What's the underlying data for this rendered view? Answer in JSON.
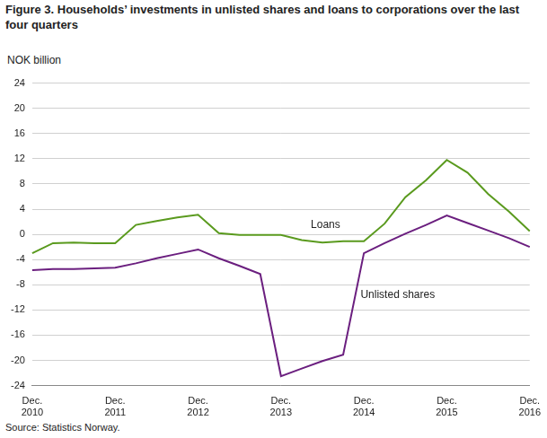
{
  "chart_data": {
    "type": "line",
    "title": "Figure 3. Households’ investments in unlisted shares and loans to corporations over the last four quarters",
    "ylabel": "NOK billion",
    "source": "Source: Statistics Norway.",
    "categories": [
      "Dec. 2010",
      null,
      null,
      null,
      "Dec. 2011",
      null,
      null,
      null,
      "Dec. 2012",
      null,
      null,
      null,
      "Dec. 2013",
      null,
      null,
      null,
      "Dec. 2014",
      null,
      null,
      null,
      "Dec. 2015",
      null,
      null,
      null,
      "Dec. 2016"
    ],
    "series": [
      {
        "name": "Loans",
        "color": "#5a9a1e",
        "values": [
          -3,
          -1.4,
          -1.3,
          -1.4,
          -1.4,
          1.5,
          2.1,
          2.7,
          3.1,
          0.2,
          -0.1,
          -0.1,
          -0.1,
          -0.9,
          -1.3,
          -1.1,
          -1.1,
          1.7,
          5.9,
          8.6,
          11.8,
          9.8,
          6.4,
          3.6,
          0.5
        ]
      },
      {
        "name": "Unlisted shares",
        "color": "#6b1f7f",
        "values": [
          -5.7,
          -5.5,
          -5.5,
          -5.4,
          -5.3,
          -4.6,
          -3.8,
          -3.1,
          -2.4,
          -3.8,
          -5,
          -6.3,
          -22.5,
          -21.3,
          -20.1,
          -19.1,
          -3,
          -1.4,
          0.1,
          1.5,
          3,
          1.8,
          0.6,
          -0.6,
          -2
        ]
      }
    ],
    "ylim": [
      -24,
      24
    ],
    "yticks": [
      -24,
      -20,
      -16,
      -12,
      -8,
      -4,
      0,
      4,
      8,
      12,
      16,
      20,
      24
    ],
    "grid": true
  }
}
